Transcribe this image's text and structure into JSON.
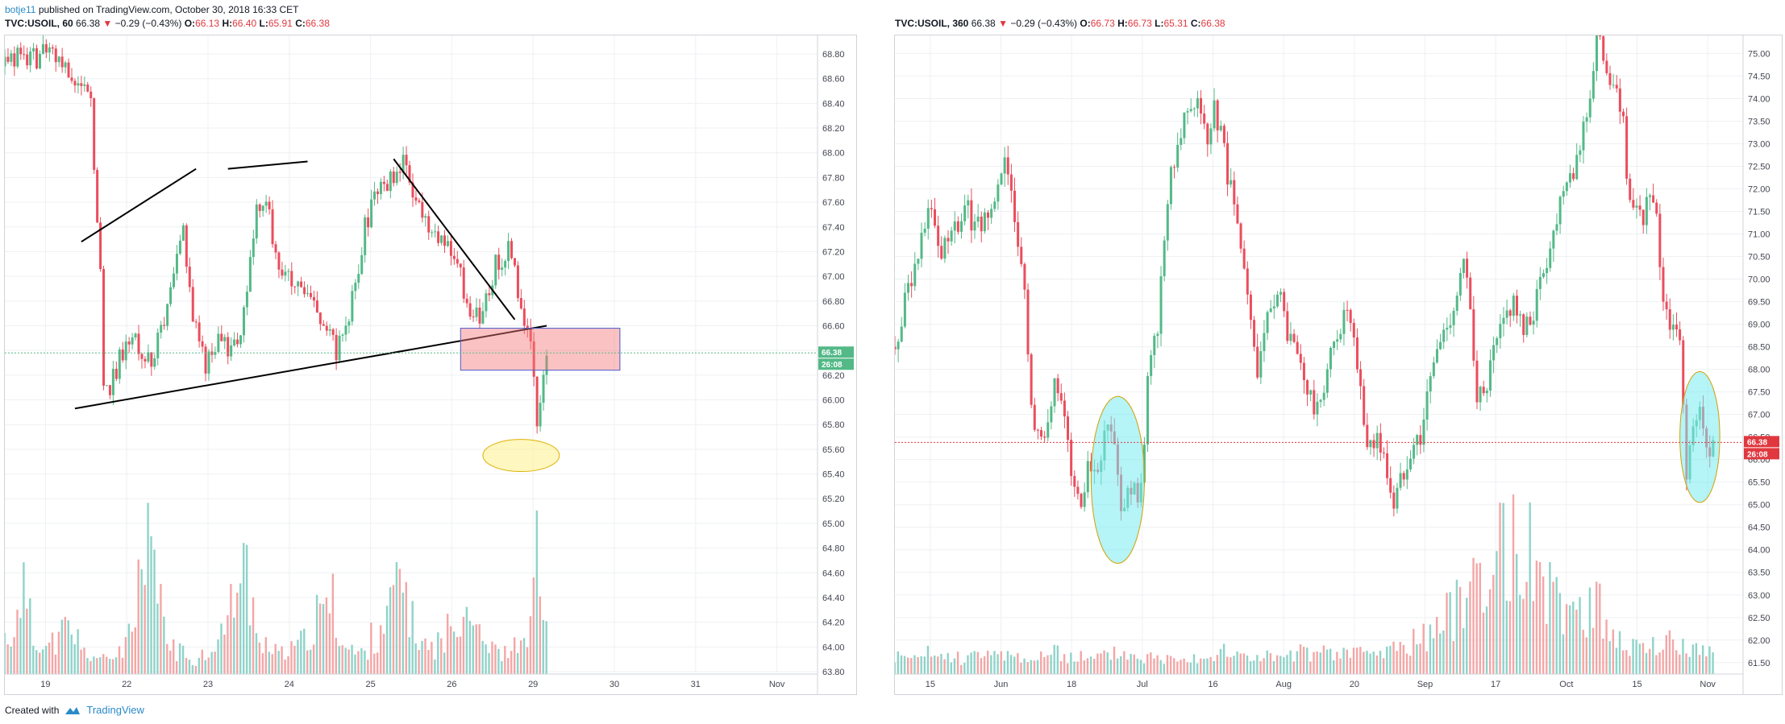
{
  "header": {
    "author": "botje11",
    "published_text": " published on TradingView.com, October 30, 2018 16:33 CET"
  },
  "left_legend": {
    "symbol": "TVC:USOIL, 60",
    "last": "66.38",
    "change": "−0.29 (−0.43%)",
    "o_label": "O:",
    "o": "66.13",
    "h_label": "H:",
    "h": "66.40",
    "l_label": "L:",
    "l": "65.91",
    "c_label": "C:",
    "c": "66.38"
  },
  "right_legend": {
    "symbol": "TVC:USOIL, 360",
    "last": "66.38",
    "change": "−0.29 (−0.43%)",
    "o_label": "O:",
    "o": "66.73",
    "h_label": "H:",
    "h": "66.73",
    "l_label": "L:",
    "l": "65.31",
    "c_label": "C:",
    "c": "66.38"
  },
  "footer": {
    "created_with": "Created with",
    "brand": "TradingView"
  },
  "colors": {
    "up": "#53b987",
    "down": "#eb4d5c",
    "vol_up": "#8fd3c9",
    "vol_down": "#f4a6a6",
    "grid": "#eef0f3"
  },
  "chart_data": [
    {
      "type": "candlestick",
      "timeframe": "60",
      "ylim": [
        63.8,
        68.95
      ],
      "y_ticks": [
        "68.80",
        "68.60",
        "68.40",
        "68.20",
        "68.00",
        "67.80",
        "67.60",
        "67.40",
        "67.20",
        "67.00",
        "66.80",
        "66.60",
        "66.40",
        "66.20",
        "66.00",
        "65.80",
        "65.60",
        "65.40",
        "65.20",
        "65.00",
        "64.80",
        "64.60",
        "64.40",
        "64.20",
        "64.00",
        "63.80"
      ],
      "x_ticks": [
        "19",
        "22",
        "23",
        "24",
        "25",
        "26",
        "29",
        "30",
        "31",
        "Nov"
      ],
      "last_price_label": "66.38",
      "countdown_label": "26:08",
      "path": [
        [
          0,
          68.7
        ],
        [
          6,
          68.8
        ],
        [
          10,
          68.75
        ],
        [
          14,
          68.85
        ],
        [
          22,
          68.6
        ],
        [
          27,
          68.4
        ],
        [
          30,
          67.0
        ],
        [
          31,
          66.2
        ],
        [
          33,
          66.1
        ],
        [
          37,
          66.4
        ],
        [
          41,
          66.5
        ],
        [
          46,
          66.3
        ],
        [
          51,
          66.7
        ],
        [
          56,
          67.4
        ],
        [
          59,
          66.7
        ],
        [
          63,
          66.3
        ],
        [
          67,
          66.45
        ],
        [
          72,
          66.4
        ],
        [
          74,
          66.5
        ],
        [
          79,
          67.5
        ],
        [
          82,
          67.6
        ],
        [
          86,
          67.1
        ],
        [
          91,
          66.9
        ],
        [
          96,
          66.8
        ],
        [
          100,
          66.6
        ],
        [
          104,
          66.4
        ],
        [
          109,
          66.8
        ],
        [
          113,
          67.4
        ],
        [
          117,
          67.7
        ],
        [
          121,
          67.8
        ],
        [
          125,
          67.9
        ],
        [
          129,
          67.6
        ],
        [
          133,
          67.4
        ],
        [
          137,
          67.3
        ],
        [
          142,
          67.1
        ],
        [
          146,
          66.7
        ],
        [
          150,
          66.7
        ],
        [
          154,
          67.1
        ],
        [
          158,
          67.2
        ],
        [
          161,
          66.9
        ],
        [
          163,
          66.6
        ],
        [
          165,
          66.5
        ],
        [
          167,
          65.7
        ],
        [
          170,
          66.4
        ]
      ],
      "volume_profile": [
        0.25,
        0.35,
        0.55,
        0.25,
        0.18,
        0.22,
        0.3,
        0.25,
        0.15,
        0.12,
        0.1,
        0.12,
        0.18,
        0.3,
        0.55,
        0.9,
        0.45,
        0.2,
        0.15,
        0.12,
        0.1,
        0.14,
        0.22,
        0.3,
        0.55,
        0.7,
        0.45,
        0.22,
        0.15,
        0.14,
        0.16,
        0.22,
        0.28,
        0.4,
        0.5,
        0.3,
        0.18,
        0.14,
        0.16,
        0.25,
        0.35,
        0.55,
        0.6,
        0.35,
        0.2,
        0.18,
        0.22,
        0.3,
        0.45,
        0.5,
        0.35,
        0.2,
        0.15,
        0.14,
        0.18,
        0.3,
        0.8,
        0.45
      ],
      "annotations": {
        "trendlines": [
          {
            "from": [
              24,
              67.28
            ],
            "to": [
              60,
              67.87
            ]
          },
          {
            "from": [
              70,
              67.87
            ],
            "to": [
              95,
              67.93
            ]
          },
          {
            "from": [
              22,
              65.93
            ],
            "to": [
              170,
              66.6
            ]
          },
          {
            "from": [
              122,
              67.95
            ],
            "to": [
              160,
              66.65
            ]
          }
        ],
        "rectangle": {
          "x0": 143,
          "x1": 193,
          "y0": 66.24,
          "y1": 66.58
        },
        "ellipse": {
          "cx": 162,
          "cy": 65.55,
          "rx": 12,
          "ry": 0.13
        }
      }
    },
    {
      "type": "candlestick",
      "timeframe": "360",
      "ylim": [
        61.3,
        75.4
      ],
      "y_ticks": [
        "75.00",
        "74.50",
        "74.00",
        "73.50",
        "73.00",
        "72.50",
        "72.00",
        "71.50",
        "71.00",
        "70.50",
        "70.00",
        "69.50",
        "69.00",
        "68.50",
        "68.00",
        "67.50",
        "67.00",
        "66.50",
        "66.00",
        "65.50",
        "65.00",
        "64.50",
        "64.00",
        "63.50",
        "63.00",
        "62.50",
        "62.00",
        "61.50"
      ],
      "x_ticks": [
        "15",
        "Jun",
        "18",
        "Jul",
        "16",
        "Aug",
        "20",
        "Sep",
        "17",
        "Oct",
        "15",
        "Nov"
      ],
      "last_price_label": "66.38",
      "countdown_label": "26:08",
      "path": [
        [
          0,
          68.5
        ],
        [
          5,
          70.0
        ],
        [
          10,
          71.5
        ],
        [
          14,
          70.7
        ],
        [
          18,
          71.2
        ],
        [
          22,
          71.5
        ],
        [
          26,
          71.0
        ],
        [
          30,
          71.8
        ],
        [
          33,
          72.4
        ],
        [
          36,
          71.5
        ],
        [
          39,
          69.5
        ],
        [
          42,
          66.5
        ],
        [
          45,
          66.3
        ],
        [
          48,
          67.9
        ],
        [
          51,
          66.9
        ],
        [
          54,
          65.2
        ],
        [
          56,
          65.0
        ],
        [
          58,
          65.8
        ],
        [
          61,
          66.0
        ],
        [
          63,
          66.4
        ],
        [
          65,
          66.8
        ],
        [
          67,
          65.8
        ],
        [
          68,
          64.7
        ],
        [
          71,
          65.5
        ],
        [
          73,
          65.1
        ],
        [
          75,
          66.1
        ],
        [
          76,
          67.8
        ],
        [
          79,
          68.8
        ],
        [
          81,
          71.0
        ],
        [
          83,
          72.5
        ],
        [
          85,
          73.0
        ],
        [
          88,
          74.0
        ],
        [
          91,
          74.1
        ],
        [
          94,
          72.9
        ],
        [
          96,
          73.7
        ],
        [
          98,
          73.3
        ],
        [
          100,
          72.3
        ],
        [
          102,
          71.5
        ],
        [
          105,
          70.0
        ],
        [
          107,
          69.2
        ],
        [
          109,
          67.8
        ],
        [
          112,
          69.0
        ],
        [
          115,
          69.9
        ],
        [
          118,
          68.8
        ],
        [
          121,
          68.3
        ],
        [
          124,
          67.5
        ],
        [
          127,
          67.0
        ],
        [
          130,
          68.0
        ],
        [
          133,
          68.8
        ],
        [
          136,
          69.3
        ],
        [
          139,
          68.0
        ],
        [
          142,
          66.3
        ],
        [
          145,
          66.5
        ],
        [
          148,
          65.7
        ],
        [
          150,
          65.0
        ],
        [
          152,
          65.5
        ],
        [
          155,
          66.3
        ],
        [
          158,
          66.5
        ],
        [
          162,
          68.2
        ],
        [
          165,
          68.8
        ],
        [
          168,
          69.4
        ],
        [
          171,
          70.3
        ],
        [
          173,
          69.3
        ],
        [
          175,
          67.5
        ],
        [
          177,
          67.3
        ],
        [
          180,
          68.3
        ],
        [
          183,
          69.0
        ],
        [
          186,
          69.6
        ],
        [
          189,
          68.7
        ],
        [
          192,
          69.3
        ],
        [
          195,
          70.2
        ],
        [
          198,
          71.0
        ],
        [
          201,
          72.2
        ],
        [
          204,
          72.5
        ],
        [
          206,
          73.0
        ],
        [
          209,
          74.1
        ],
        [
          211,
          75.3
        ],
        [
          213,
          75.0
        ],
        [
          215,
          74.5
        ],
        [
          217,
          74.0
        ],
        [
          219,
          73.5
        ],
        [
          221,
          71.5
        ],
        [
          224,
          71.3
        ],
        [
          227,
          71.8
        ],
        [
          229,
          71.2
        ],
        [
          231,
          69.6
        ],
        [
          234,
          68.8
        ],
        [
          236,
          68.6
        ],
        [
          238,
          65.8
        ],
        [
          240,
          66.6
        ],
        [
          242,
          67.0
        ],
        [
          244,
          66.2
        ],
        [
          246,
          66.4
        ]
      ],
      "volume_profile": [
        0.12,
        0.1,
        0.14,
        0.12,
        0.11,
        0.13,
        0.12,
        0.15,
        0.12,
        0.11,
        0.13,
        0.14,
        0.12,
        0.1,
        0.12,
        0.15,
        0.13,
        0.12,
        0.11,
        0.14,
        0.13,
        0.12,
        0.15,
        0.14,
        0.12,
        0.13,
        0.11,
        0.12,
        0.15,
        0.14,
        0.13,
        0.16,
        0.15,
        0.14,
        0.18,
        0.2,
        0.25,
        0.3,
        0.4,
        0.55,
        0.75,
        0.6,
        0.9,
        0.7,
        0.85,
        0.55,
        0.4,
        0.5,
        0.45,
        0.35,
        0.25,
        0.2,
        0.18,
        0.22,
        0.2,
        0.18,
        0.16
      ],
      "annotations": {
        "ellipses": [
          {
            "cx": 67,
            "cy": 65.55,
            "rx": 8,
            "ry": 1.85
          },
          {
            "cx": 242,
            "cy": 66.5,
            "rx": 6,
            "ry": 1.45
          }
        ]
      }
    }
  ]
}
